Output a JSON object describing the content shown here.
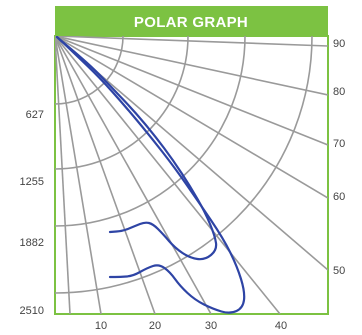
{
  "chart_data": {
    "type": "polar",
    "title": "POLAR GRAPH",
    "xlabel": "",
    "ylabel": "",
    "bottom_ticks": [
      "10",
      "20",
      "30",
      "40"
    ],
    "left_ticks": [
      "627",
      "1255",
      "1882",
      "2510"
    ],
    "right_ticks": [
      "90",
      "80",
      "70",
      "60",
      "50"
    ],
    "grid": true,
    "colors": {
      "header": "#7cc242",
      "frame": "#7cc242",
      "grid": "#9a9a9a",
      "series": "#2e44a5"
    },
    "series": [
      {
        "name": "",
        "points": [
          [
            2,
            1
          ],
          [
            10,
            8
          ],
          [
            22,
            18
          ],
          [
            40,
            34
          ],
          [
            60,
            55
          ],
          [
            80,
            76
          ],
          [
            100,
            100
          ],
          [
            118,
            124
          ],
          [
            135,
            150
          ],
          [
            150,
            176
          ],
          [
            160,
            200
          ],
          [
            162,
            214
          ],
          [
            150,
            224
          ],
          [
            135,
            222
          ],
          [
            120,
            212
          ],
          [
            108,
            198
          ],
          [
            98,
            188
          ],
          [
            90,
            186
          ],
          [
            80,
            190
          ],
          [
            68,
            195
          ],
          [
            55,
            196
          ]
        ]
      },
      {
        "name": "",
        "points": [
          [
            2,
            1
          ],
          [
            20,
            18
          ],
          [
            45,
            42
          ],
          [
            70,
            70
          ],
          [
            95,
            100
          ],
          [
            120,
            132
          ],
          [
            145,
            168
          ],
          [
            168,
            202
          ],
          [
            182,
            230
          ],
          [
            190,
            256
          ],
          [
            188,
            272
          ],
          [
            175,
            278
          ],
          [
            158,
            273
          ],
          [
            140,
            264
          ],
          [
            125,
            250
          ],
          [
            115,
            236
          ],
          [
            104,
            228
          ],
          [
            92,
            232
          ],
          [
            78,
            240
          ],
          [
            65,
            241
          ],
          [
            55,
            241
          ]
        ]
      }
    ]
  }
}
